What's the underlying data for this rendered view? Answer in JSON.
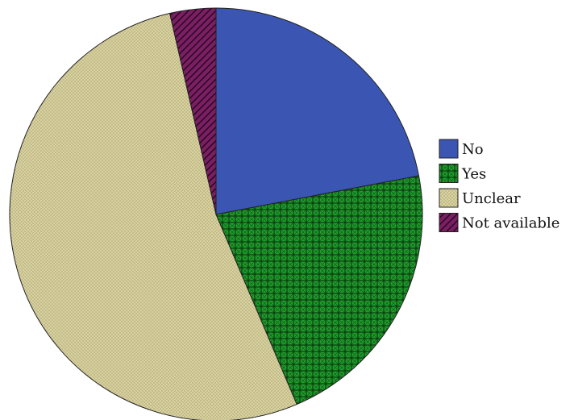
{
  "chart_data": {
    "type": "pie",
    "title": "",
    "start_angle_deg": 0,
    "direction": "clockwise",
    "legend_position": "right",
    "slices": [
      {
        "label": "No",
        "value": 22.0,
        "color": "#3b56b2",
        "pattern": "none"
      },
      {
        "label": "Yes",
        "value": 21.6,
        "color": "#1f9e2b",
        "pattern": "crosshatch-stars"
      },
      {
        "label": "Unclear",
        "value": 52.8,
        "color": "#d9d29f",
        "pattern": "fine-dots"
      },
      {
        "label": "Not available",
        "value": 3.6,
        "color": "#7a1f63",
        "pattern": "diagonal-hatch"
      }
    ]
  }
}
